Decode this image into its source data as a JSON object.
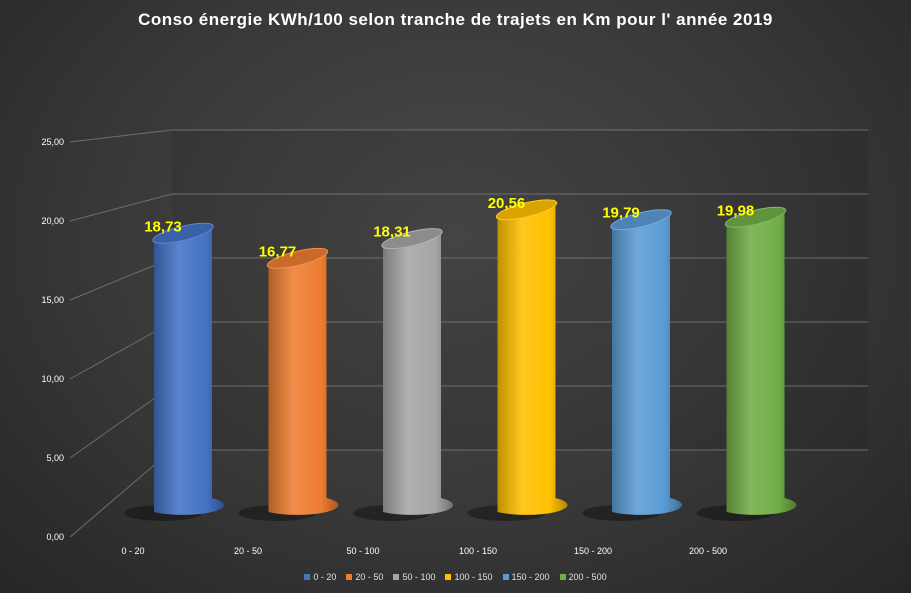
{
  "chart_data": {
    "type": "bar",
    "title": "Conso énergie KWh/100 selon tranche de trajets en Km pour l' année 2019",
    "categories": [
      "0 - 20",
      "20 - 50",
      "50 - 100",
      "100 - 150",
      "150 - 200",
      "200 - 500"
    ],
    "values": [
      18.73,
      16.77,
      18.31,
      20.56,
      19.79,
      19.98
    ],
    "value_labels": [
      "18,73",
      "16,77",
      "18,31",
      "20,56",
      "19,79",
      "19,98"
    ],
    "colors": [
      "#4472C4",
      "#ED7D31",
      "#A5A5A5",
      "#FFC000",
      "#5B9BD5",
      "#70AD47"
    ],
    "yticks": [
      "0,00",
      "5,00",
      "10,00",
      "15,00",
      "20,00",
      "25,00"
    ],
    "ylim": [
      0,
      25
    ],
    "grid": true,
    "legend_position": "bottom",
    "label_color": "#FFFF00"
  }
}
